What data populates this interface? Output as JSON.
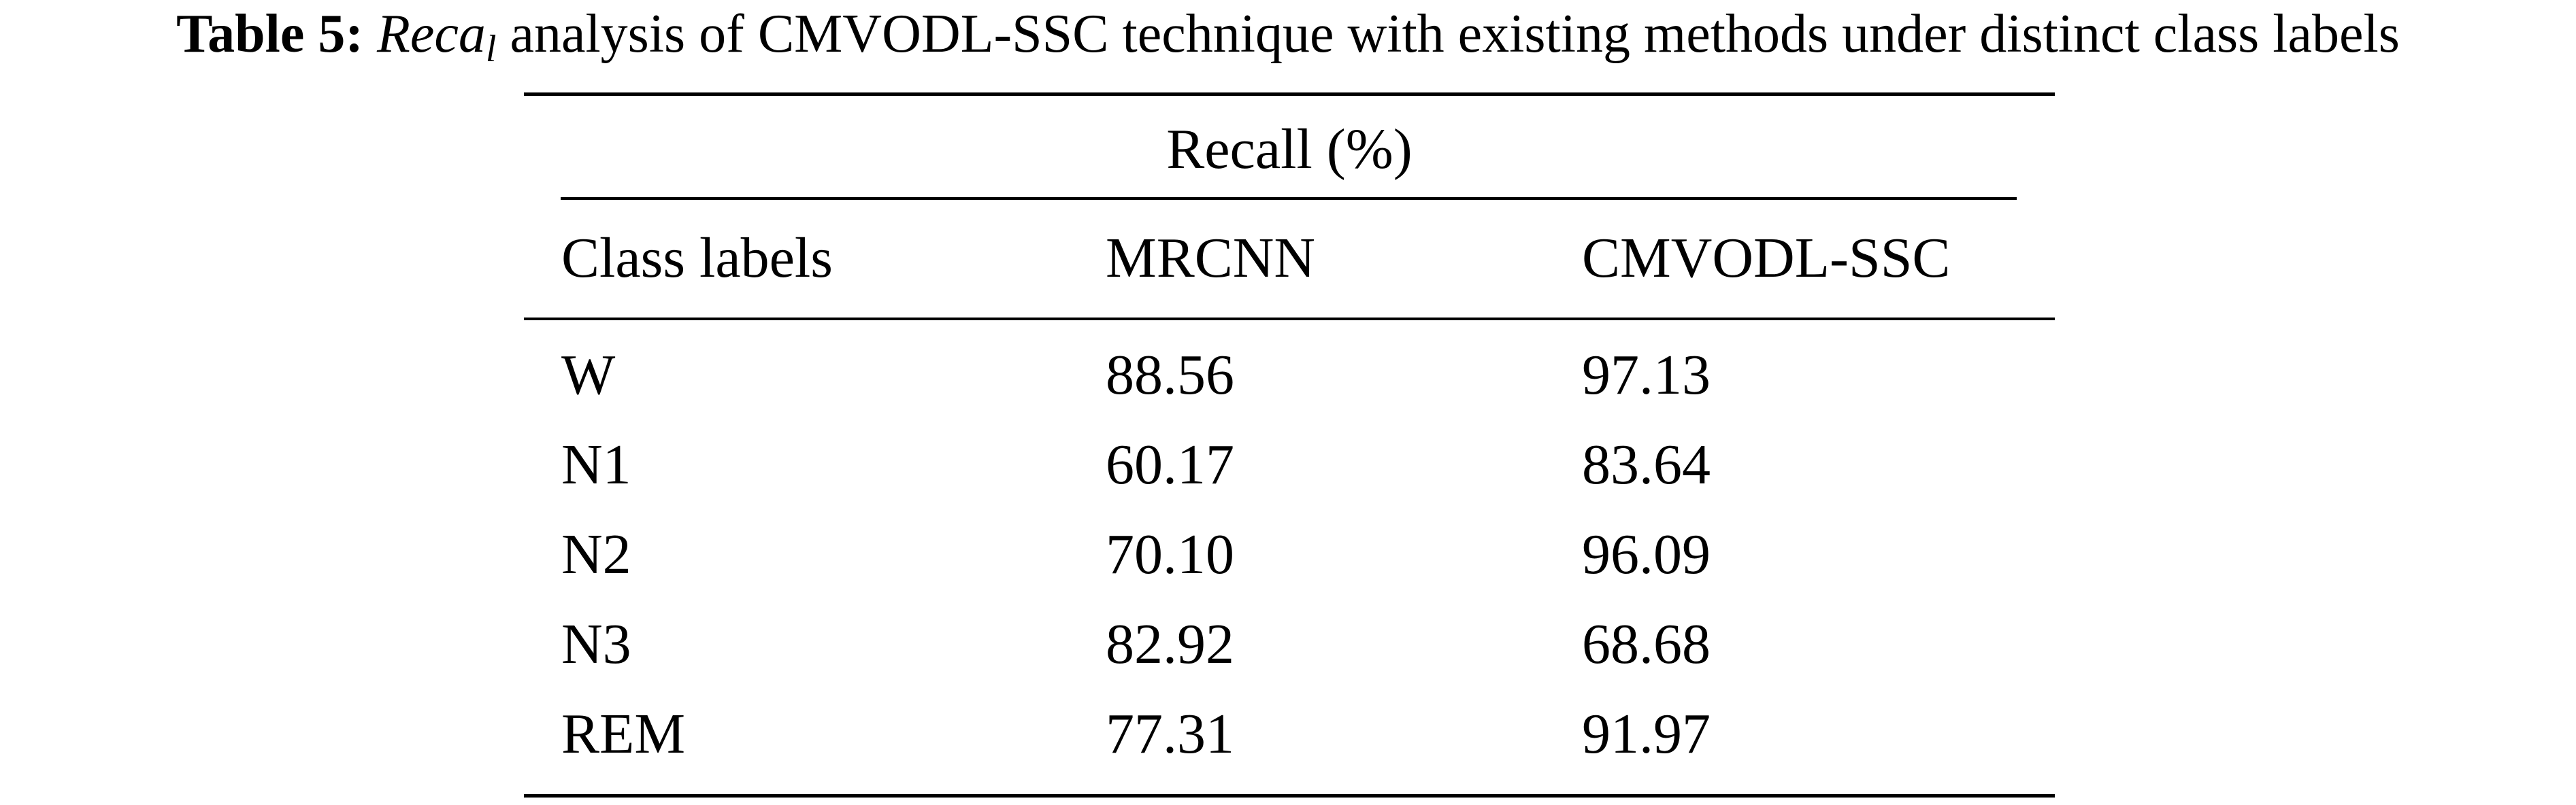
{
  "caption": {
    "label": "Table 5:",
    "italic_term": "Reca",
    "italic_sub": "l",
    "rest": " analysis of CMVODL-SSC technique with existing methods under distinct class labels"
  },
  "table": {
    "group_header": "Recall (%)",
    "headers": [
      "Class labels",
      "MRCNN",
      "CMVODL-SSC"
    ],
    "rows": [
      [
        "W",
        "88.56",
        "97.13"
      ],
      [
        "N1",
        "60.17",
        "83.64"
      ],
      [
        "N2",
        "70.10",
        "96.09"
      ],
      [
        "N3",
        "82.92",
        "68.68"
      ],
      [
        "REM",
        "77.31",
        "91.97"
      ]
    ]
  },
  "chart_data": {
    "type": "table",
    "title": "Table 5: Recal analysis of CMVODL-SSC technique with existing methods under distinct class labels",
    "columns": [
      "Class labels",
      "MRCNN",
      "CMVODL-SSC"
    ],
    "categories": [
      "W",
      "N1",
      "N2",
      "N3",
      "REM"
    ],
    "series": [
      {
        "name": "MRCNN",
        "values": [
          88.56,
          60.17,
          70.1,
          82.92,
          77.31
        ]
      },
      {
        "name": "CMVODL-SSC",
        "values": [
          97.13,
          83.64,
          96.09,
          68.68,
          91.97
        ]
      }
    ]
  }
}
